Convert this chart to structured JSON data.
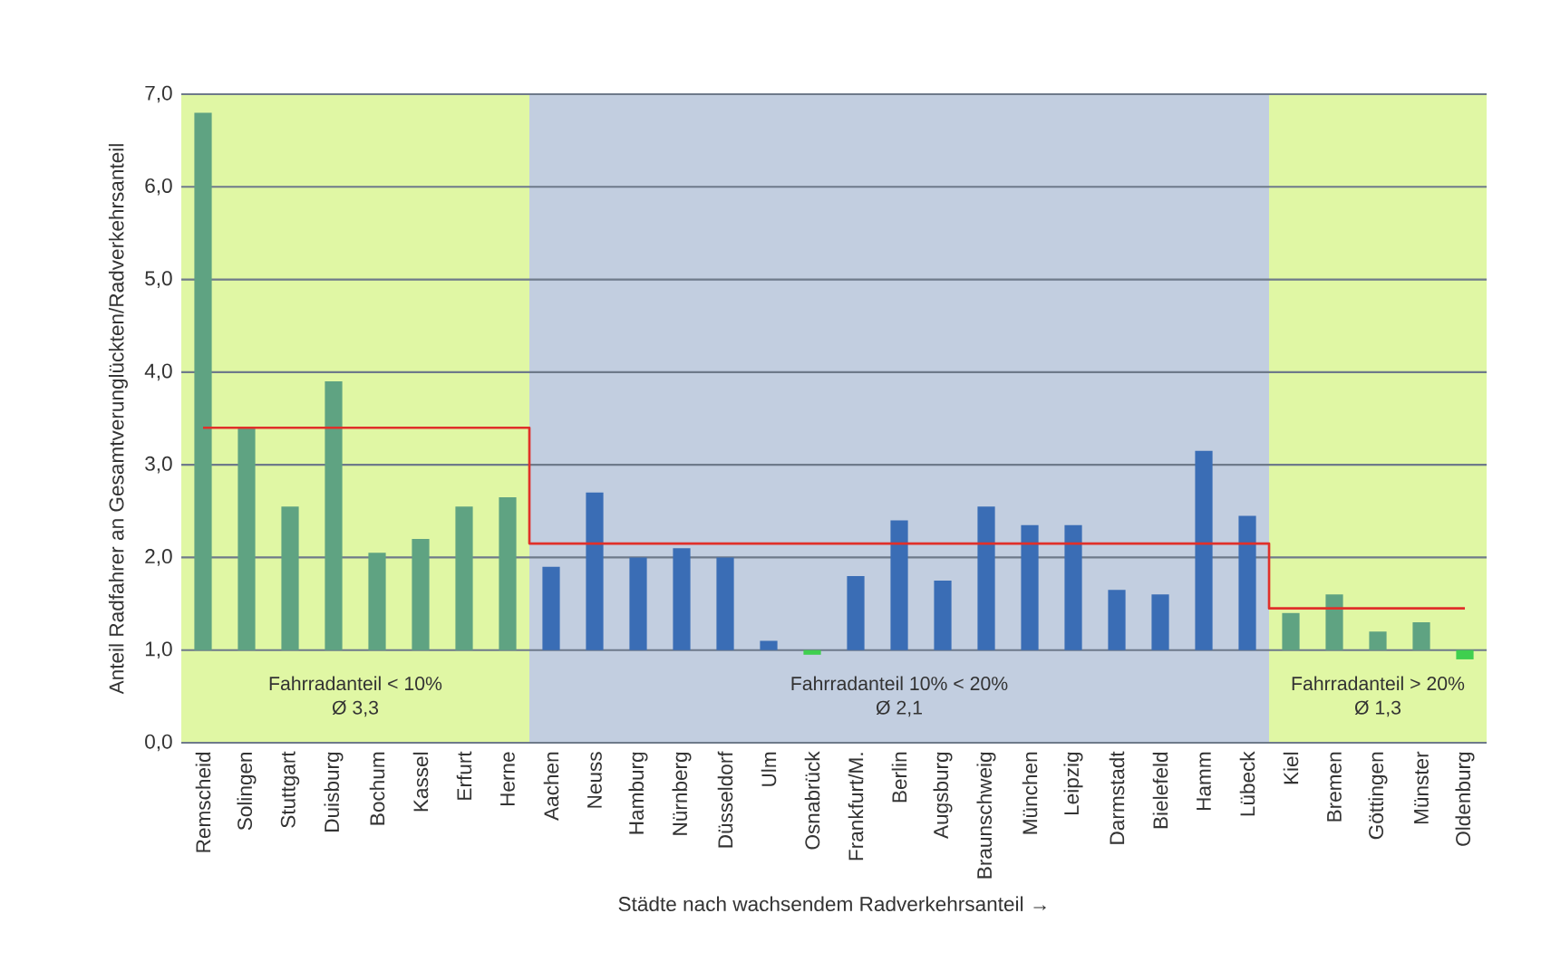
{
  "chart_data": {
    "type": "bar",
    "xlabel": "Städte nach wachsendem Radverkehrsanteil →",
    "ylabel": "Anteil Radfahrer an Gesamtverunglückten/Radverkehrsanteil",
    "categories": [
      "Remscheid",
      "Solingen",
      "Stuttgart",
      "Duisburg",
      "Bochum",
      "Kassel",
      "Erfurt",
      "Herne",
      "Aachen",
      "Neuss",
      "Hamburg",
      "Nürnberg",
      "Düsseldorf",
      "Ulm",
      "Osnabrück",
      "Frankfurt/M.",
      "Berlin",
      "Augsburg",
      "Braunschweig",
      "München",
      "Leipzig",
      "Darmstadt",
      "Bielefeld",
      "Hamm",
      "Lübeck",
      "Kiel",
      "Bremen",
      "Göttingen",
      "Münster",
      "Oldenburg"
    ],
    "series": [
      {
        "type": "bar",
        "base": [
          1,
          1,
          1,
          1,
          1,
          1,
          1,
          1,
          1,
          1,
          1,
          1,
          1,
          1,
          1,
          1,
          1,
          1,
          1,
          1,
          1,
          1,
          1,
          1,
          1,
          1,
          1,
          1,
          1,
          1
        ],
        "values": [
          5.8,
          2.4,
          1.55,
          2.9,
          1.05,
          1.2,
          1.55,
          1.65,
          0.9,
          1.7,
          1.0,
          1.1,
          1.0,
          0.1,
          -0.05,
          0.8,
          1.4,
          0.75,
          1.55,
          1.35,
          1.35,
          0.65,
          0.6,
          2.15,
          1.45,
          0.4,
          0.6,
          0.2,
          0.3,
          -0.1
        ],
        "colors": [
          "#5fa382",
          "#5fa382",
          "#5fa382",
          "#5fa382",
          "#5fa382",
          "#5fa382",
          "#5fa382",
          "#5fa382",
          "#3a6db5",
          "#3a6db5",
          "#3a6db5",
          "#3a6db5",
          "#3a6db5",
          "#3a6db5",
          "#3fcf4f",
          "#3a6db5",
          "#3a6db5",
          "#3a6db5",
          "#3a6db5",
          "#3a6db5",
          "#3a6db5",
          "#3a6db5",
          "#3a6db5",
          "#3a6db5",
          "#3a6db5",
          "#5fa382",
          "#5fa382",
          "#5fa382",
          "#5fa382",
          "#3fcf4f"
        ]
      },
      {
        "type": "step",
        "color": "#e0302a",
        "values": [
          3.4,
          3.4,
          3.4,
          3.4,
          3.4,
          3.4,
          3.4,
          3.4,
          2.15,
          2.15,
          2.15,
          2.15,
          2.15,
          2.15,
          2.15,
          2.15,
          2.15,
          2.15,
          2.15,
          2.15,
          2.15,
          2.15,
          2.15,
          2.15,
          2.15,
          1.45,
          1.45,
          1.45,
          1.45,
          1.45
        ]
      }
    ],
    "ylim": [
      0,
      7
    ],
    "yticks": [
      {
        "value": 0,
        "label": "0,0"
      },
      {
        "value": 1,
        "label": "1,0"
      },
      {
        "value": 2,
        "label": "2,0"
      },
      {
        "value": 3,
        "label": "3,0"
      },
      {
        "value": 4,
        "label": "4,0"
      },
      {
        "value": 5,
        "label": "5,0"
      },
      {
        "value": 6,
        "label": "6,0"
      },
      {
        "value": 7,
        "label": "7,0"
      }
    ],
    "grid": "y",
    "bands": [
      {
        "axis": "x",
        "from": "Remscheid",
        "to": "Herne",
        "label": "Fahrradanteil < 10%",
        "color": "#e0f7a4"
      },
      {
        "axis": "x",
        "from": "Aachen",
        "to": "Lübeck",
        "label": "Fahrradanteil 10% < 20%",
        "color": "#c2cee0"
      },
      {
        "axis": "x",
        "from": "Kiel",
        "to": "Oldenburg",
        "label": "Fahrradanteil > 20%",
        "color": "#e0f7a4"
      }
    ],
    "annotations": [
      "Ø 3,3",
      "Ø 2,1",
      "Ø 1,3"
    ]
  }
}
